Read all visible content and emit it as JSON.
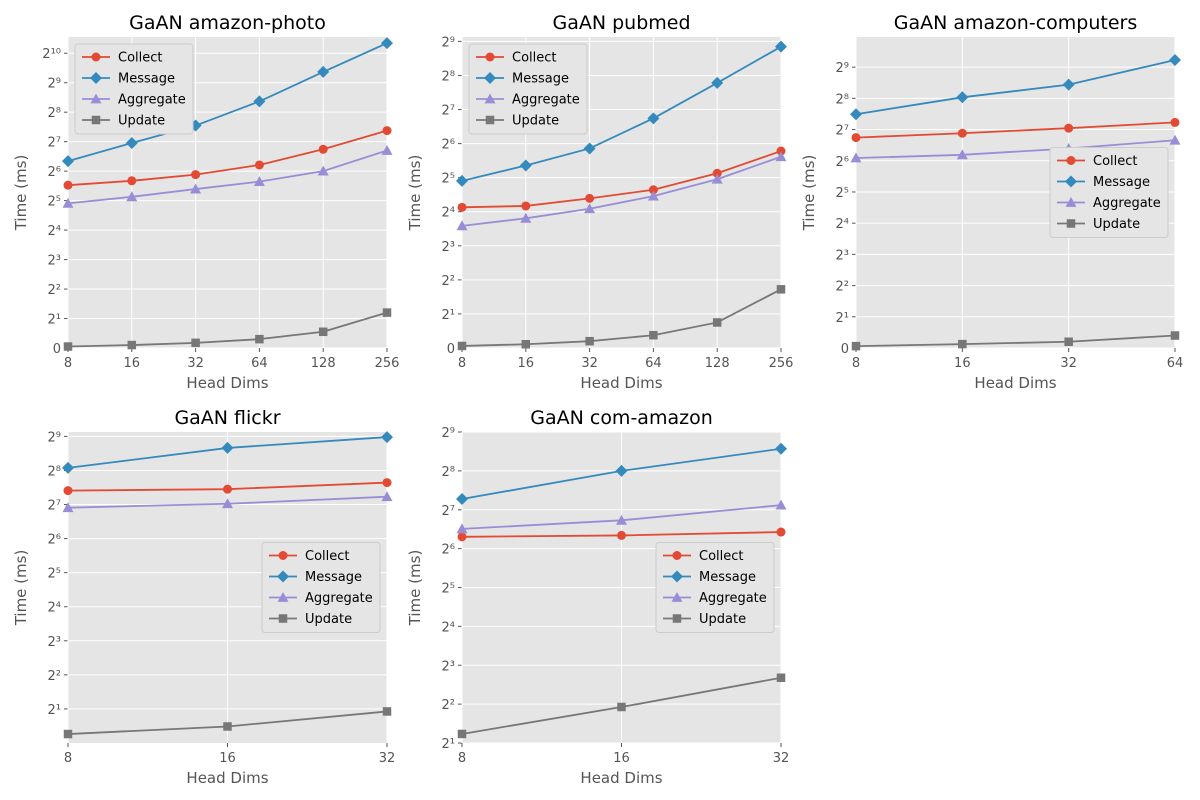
{
  "chart_data": [
    {
      "type": "line",
      "title": "GaAN amazon-photo",
      "xlabel": "Head Dims",
      "ylabel": "Time (ms)",
      "x": [
        8,
        16,
        32,
        64,
        128,
        256
      ],
      "xscale": "log2",
      "yscale": "symlog2",
      "ylim": [
        0,
        1500
      ],
      "ytick_exponents": [
        1,
        2,
        3,
        4,
        5,
        6,
        7,
        8,
        9,
        10
      ],
      "grid": true,
      "legend_location": "upper-left",
      "series": [
        {
          "name": "Collect",
          "marker": "circle",
          "color": "#E24A33",
          "values": [
            46,
            51,
            59,
            74,
            107,
            166
          ]
        },
        {
          "name": "Message",
          "marker": "diamond",
          "color": "#348ABD",
          "values": [
            81,
            124,
            187,
            330,
            660,
            1300
          ]
        },
        {
          "name": "Aggregate",
          "marker": "triangle",
          "color": "#988ED5",
          "values": [
            30,
            35,
            42,
            50,
            64,
            104
          ]
        },
        {
          "name": "Update",
          "marker": "square",
          "color": "#777777",
          "values": [
            0.1,
            0.2,
            0.35,
            0.6,
            1.1,
            2.3
          ]
        }
      ]
    },
    {
      "type": "line",
      "title": "GaAN pubmed",
      "xlabel": "Head Dims",
      "ylabel": "Time (ms)",
      "x": [
        8,
        16,
        32,
        64,
        128,
        256
      ],
      "xscale": "log2",
      "yscale": "symlog2",
      "ylim": [
        0,
        560
      ],
      "ytick_exponents": [
        1,
        2,
        3,
        4,
        5,
        6,
        7,
        8,
        9
      ],
      "grid": true,
      "legend_location": "upper-left",
      "series": [
        {
          "name": "Collect",
          "marker": "circle",
          "color": "#E24A33",
          "values": [
            17.5,
            18,
            21,
            25,
            35,
            55
          ]
        },
        {
          "name": "Message",
          "marker": "diamond",
          "color": "#348ABD",
          "values": [
            30,
            41,
            58,
            107,
            220,
            460
          ]
        },
        {
          "name": "Aggregate",
          "marker": "triangle",
          "color": "#988ED5",
          "values": [
            12,
            14,
            17,
            22,
            31,
            49
          ]
        },
        {
          "name": "Update",
          "marker": "square",
          "color": "#777777",
          "values": [
            0.12,
            0.22,
            0.4,
            0.75,
            1.5,
            3.3
          ]
        }
      ]
    },
    {
      "type": "line",
      "title": "GaAN amazon-computers",
      "xlabel": "Head Dims",
      "ylabel": "Time (ms)",
      "x": [
        8,
        16,
        32,
        64
      ],
      "xscale": "log2",
      "yscale": "symlog2",
      "ylim": [
        0,
        1000
      ],
      "ytick_exponents": [
        1,
        2,
        3,
        4,
        5,
        6,
        7,
        8,
        9
      ],
      "grid": true,
      "legend_location": "center-right",
      "series": [
        {
          "name": "Collect",
          "marker": "circle",
          "color": "#E24A33",
          "values": [
            107,
            118,
            132,
            150
          ]
        },
        {
          "name": "Message",
          "marker": "diamond",
          "color": "#348ABD",
          "values": [
            180,
            262,
            347,
            600
          ]
        },
        {
          "name": "Aggregate",
          "marker": "triangle",
          "color": "#988ED5",
          "values": [
            68,
            73,
            84,
            101
          ]
        },
        {
          "name": "Update",
          "marker": "square",
          "color": "#777777",
          "values": [
            0.12,
            0.25,
            0.4,
            0.8
          ]
        }
      ]
    },
    {
      "type": "line",
      "title": "GaAN flickr",
      "xlabel": "Head Dims",
      "ylabel": "Time (ms)",
      "x": [
        8,
        16,
        32
      ],
      "xscale": "log2",
      "yscale": "log2",
      "ylim": [
        1,
        560
      ],
      "ytick_exponents": [
        1,
        2,
        3,
        4,
        5,
        6,
        7,
        8,
        9
      ],
      "grid": true,
      "legend_location": "center-right",
      "series": [
        {
          "name": "Collect",
          "marker": "circle",
          "color": "#E24A33",
          "values": [
            170,
            175,
            200
          ]
        },
        {
          "name": "Message",
          "marker": "diamond",
          "color": "#348ABD",
          "values": [
            270,
            405,
            505
          ]
        },
        {
          "name": "Aggregate",
          "marker": "triangle",
          "color": "#988ED5",
          "values": [
            120,
            130,
            150
          ]
        },
        {
          "name": "Update",
          "marker": "square",
          "color": "#777777",
          "values": [
            1.2,
            1.4,
            1.9
          ]
        }
      ]
    },
    {
      "type": "line",
      "title": "GaAN com-amazon",
      "xlabel": "Head Dims",
      "ylabel": "Time (ms)",
      "x": [
        8,
        16,
        32
      ],
      "xscale": "log2",
      "yscale": "log2",
      "ylim": [
        2,
        512
      ],
      "ytick_exponents": [
        1,
        2,
        3,
        4,
        5,
        6,
        7,
        8,
        9
      ],
      "grid": true,
      "legend_location": "center-right",
      "series": [
        {
          "name": "Collect",
          "marker": "circle",
          "color": "#E24A33",
          "values": [
            79,
            81,
            86
          ]
        },
        {
          "name": "Message",
          "marker": "diamond",
          "color": "#348ABD",
          "values": [
            155,
            256,
            380
          ]
        },
        {
          "name": "Aggregate",
          "marker": "triangle",
          "color": "#988ED5",
          "values": [
            91,
            106,
            139
          ]
        },
        {
          "name": "Update",
          "marker": "square",
          "color": "#777777",
          "values": [
            2.35,
            3.8,
            6.4
          ]
        }
      ]
    }
  ]
}
